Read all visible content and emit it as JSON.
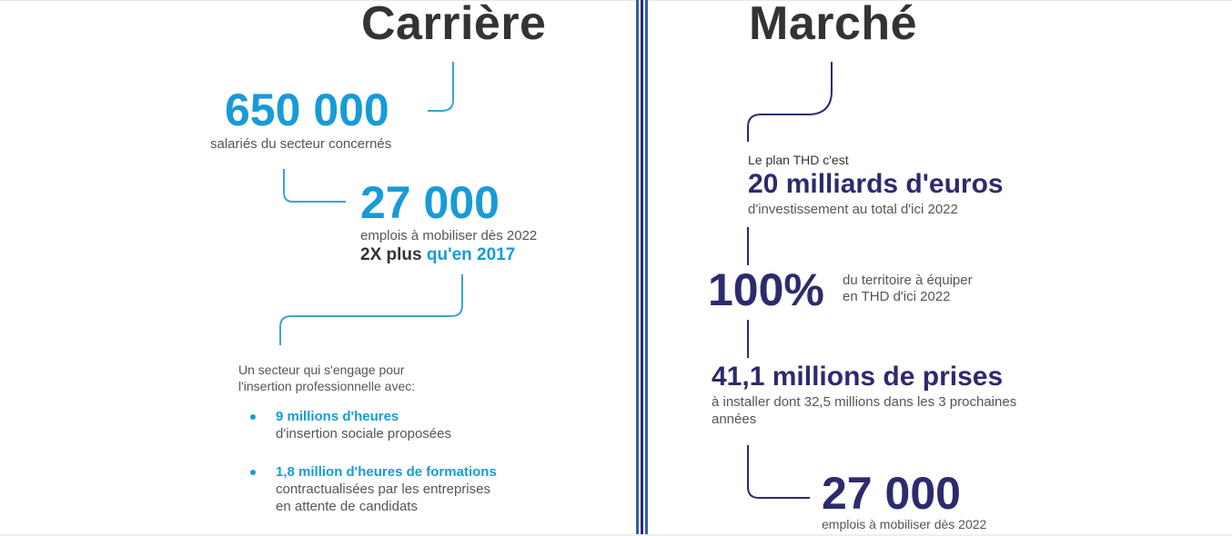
{
  "carriere": {
    "title": "Carrière",
    "stat1": {
      "value": "650 000",
      "label": "salariés du secteur concernés"
    },
    "stat2": {
      "value": "27 000",
      "label": "emplois à mobiliser dès 2022",
      "compare_bold": "2X plus",
      "compare_accent": "qu'en 2017"
    },
    "engagement": {
      "intro_line1": "Un secteur qui s'engage pour",
      "intro_line2": "l'insertion professionnelle avec:",
      "bullets": [
        {
          "title": "9 millions d'heures",
          "desc_lines": [
            "d'insertion sociale proposées"
          ]
        },
        {
          "title": "1,8 million d'heures de formations",
          "desc_lines": [
            "contractualisées par les entreprises",
            "en attente de candidats"
          ]
        }
      ]
    }
  },
  "marche": {
    "title": "Marché",
    "plan": {
      "intro": "Le plan THD c'est",
      "value": "20 milliards d'euros",
      "label": "d'investissement au total d'ici 2022"
    },
    "territoire": {
      "value": "100%",
      "label_line1": "du territoire à équiper",
      "label_line2": "en THD d'ici 2022"
    },
    "prises": {
      "value": "41,1 millions de prises",
      "label_line1": "à installer dont 32,5 millions dans les 3 prochaines",
      "label_line2": "années"
    },
    "emplois": {
      "value": "27 000",
      "label": "emplois à mobiliser dès 2022"
    }
  },
  "colors": {
    "blue_accent": "#179bd7",
    "navy_accent": "#2d2a6e",
    "connector_blue": "#3aa5cf",
    "connector_navy": "#2d2a6e",
    "divider_blue": "#2f5fa8",
    "divider_navy": "#2d2a6e"
  }
}
